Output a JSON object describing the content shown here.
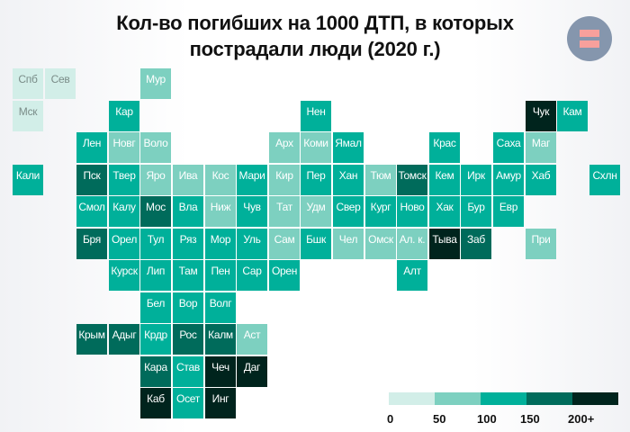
{
  "title_line1": "Кол-во погибших на 1000 ДТП, в которых",
  "title_line2": "пострадали люди (2020 г.)",
  "logo": "equals-logo",
  "legend": {
    "colors": [
      "#d2eee8",
      "#7dd0c0",
      "#00b09a",
      "#006b5b",
      "#00241d"
    ],
    "labels": [
      "0",
      "50",
      "100",
      "150",
      "200+"
    ]
  },
  "chart_data": {
    "type": "heatmap",
    "title": "Кол-во погибших на 1000 ДТП, в которых пострадали люди (2020 г.)",
    "subtitle": "",
    "description": "Tile-grid map of Russian regions; color bin indicates deaths per 1000 road accidents with injured people",
    "bins": [
      {
        "bin": 0,
        "range": "0–50",
        "color": "#d2eee8"
      },
      {
        "bin": 1,
        "range": "50–100",
        "color": "#7dd0c0"
      },
      {
        "bin": 2,
        "range": "100–150",
        "color": "#00b09a"
      },
      {
        "bin": 3,
        "range": "150–200",
        "color": "#006b5b"
      },
      {
        "bin": 4,
        "range": "200+",
        "color": "#00241d"
      }
    ],
    "legend_ticks": [
      "0",
      "50",
      "100",
      "150",
      "200+"
    ],
    "regions": [
      {
        "name": "Спб",
        "row": 0,
        "col": 0,
        "bin": 0
      },
      {
        "name": "Сев",
        "row": 0,
        "col": 1,
        "bin": 0
      },
      {
        "name": "Мур",
        "row": 0,
        "col": 4,
        "bin": 1
      },
      {
        "name": "Мск",
        "row": 1,
        "col": 0,
        "bin": 0
      },
      {
        "name": "Кар",
        "row": 1,
        "col": 3,
        "bin": 2
      },
      {
        "name": "Нен",
        "row": 1,
        "col": 9,
        "bin": 2
      },
      {
        "name": "Чук",
        "row": 1,
        "col": 16,
        "bin": 4
      },
      {
        "name": "Кам",
        "row": 1,
        "col": 17,
        "bin": 2
      },
      {
        "name": "Лен",
        "row": 2,
        "col": 2,
        "bin": 2
      },
      {
        "name": "Новг",
        "row": 2,
        "col": 3,
        "bin": 1
      },
      {
        "name": "Воло",
        "row": 2,
        "col": 4,
        "bin": 1
      },
      {
        "name": "Арх",
        "row": 2,
        "col": 8,
        "bin": 1
      },
      {
        "name": "Коми",
        "row": 2,
        "col": 9,
        "bin": 1
      },
      {
        "name": "Ямал",
        "row": 2,
        "col": 10,
        "bin": 2
      },
      {
        "name": "Крас",
        "row": 2,
        "col": 13,
        "bin": 2
      },
      {
        "name": "Саха",
        "row": 2,
        "col": 15,
        "bin": 2
      },
      {
        "name": "Маг",
        "row": 2,
        "col": 16,
        "bin": 1
      },
      {
        "name": "Кали",
        "row": 3,
        "col": 0,
        "bin": 2
      },
      {
        "name": "Пск",
        "row": 3,
        "col": 2,
        "bin": 3
      },
      {
        "name": "Твер",
        "row": 3,
        "col": 3,
        "bin": 2
      },
      {
        "name": "Яро",
        "row": 3,
        "col": 4,
        "bin": 1
      },
      {
        "name": "Ива",
        "row": 3,
        "col": 5,
        "bin": 1
      },
      {
        "name": "Кос",
        "row": 3,
        "col": 6,
        "bin": 1
      },
      {
        "name": "Мари",
        "row": 3,
        "col": 7,
        "bin": 2
      },
      {
        "name": "Кир",
        "row": 3,
        "col": 8,
        "bin": 1
      },
      {
        "name": "Пер",
        "row": 3,
        "col": 9,
        "bin": 2
      },
      {
        "name": "Хан",
        "row": 3,
        "col": 10,
        "bin": 2
      },
      {
        "name": "Тюм",
        "row": 3,
        "col": 11,
        "bin": 1
      },
      {
        "name": "Томск",
        "row": 3,
        "col": 12,
        "bin": 3
      },
      {
        "name": "Кем",
        "row": 3,
        "col": 13,
        "bin": 2
      },
      {
        "name": "Ирк",
        "row": 3,
        "col": 14,
        "bin": 2
      },
      {
        "name": "Амур",
        "row": 3,
        "col": 15,
        "bin": 2
      },
      {
        "name": "Хаб",
        "row": 3,
        "col": 16,
        "bin": 2
      },
      {
        "name": "Схлн",
        "row": 3,
        "col": 18,
        "bin": 2
      },
      {
        "name": "Смол",
        "row": 4,
        "col": 2,
        "bin": 2
      },
      {
        "name": "Калу",
        "row": 4,
        "col": 3,
        "bin": 2
      },
      {
        "name": "Мос",
        "row": 4,
        "col": 4,
        "bin": 3
      },
      {
        "name": "Вла",
        "row": 4,
        "col": 5,
        "bin": 2
      },
      {
        "name": "Ниж",
        "row": 4,
        "col": 6,
        "bin": 1
      },
      {
        "name": "Чув",
        "row": 4,
        "col": 7,
        "bin": 2
      },
      {
        "name": "Тат",
        "row": 4,
        "col": 8,
        "bin": 1
      },
      {
        "name": "Удм",
        "row": 4,
        "col": 9,
        "bin": 1
      },
      {
        "name": "Свер",
        "row": 4,
        "col": 10,
        "bin": 2
      },
      {
        "name": "Кург",
        "row": 4,
        "col": 11,
        "bin": 2
      },
      {
        "name": "Ново",
        "row": 4,
        "col": 12,
        "bin": 2
      },
      {
        "name": "Хак",
        "row": 4,
        "col": 13,
        "bin": 2
      },
      {
        "name": "Бур",
        "row": 4,
        "col": 14,
        "bin": 2
      },
      {
        "name": "Евр",
        "row": 4,
        "col": 15,
        "bin": 2
      },
      {
        "name": "Бря",
        "row": 5,
        "col": 2,
        "bin": 3
      },
      {
        "name": "Орел",
        "row": 5,
        "col": 3,
        "bin": 2
      },
      {
        "name": "Тул",
        "row": 5,
        "col": 4,
        "bin": 2
      },
      {
        "name": "Ряз",
        "row": 5,
        "col": 5,
        "bin": 2
      },
      {
        "name": "Мор",
        "row": 5,
        "col": 6,
        "bin": 2
      },
      {
        "name": "Уль",
        "row": 5,
        "col": 7,
        "bin": 2
      },
      {
        "name": "Сам",
        "row": 5,
        "col": 8,
        "bin": 1
      },
      {
        "name": "Бшк",
        "row": 5,
        "col": 9,
        "bin": 2
      },
      {
        "name": "Чел",
        "row": 5,
        "col": 10,
        "bin": 1
      },
      {
        "name": "Омск",
        "row": 5,
        "col": 11,
        "bin": 1
      },
      {
        "name": "Ал. к.",
        "row": 5,
        "col": 12,
        "bin": 1
      },
      {
        "name": "Тыва",
        "row": 5,
        "col": 13,
        "bin": 4
      },
      {
        "name": "Заб",
        "row": 5,
        "col": 14,
        "bin": 3
      },
      {
        "name": "При",
        "row": 5,
        "col": 16,
        "bin": 1
      },
      {
        "name": "Курск",
        "row": 6,
        "col": 3,
        "bin": 2
      },
      {
        "name": "Лип",
        "row": 6,
        "col": 4,
        "bin": 2
      },
      {
        "name": "Там",
        "row": 6,
        "col": 5,
        "bin": 2
      },
      {
        "name": "Пен",
        "row": 6,
        "col": 6,
        "bin": 2
      },
      {
        "name": "Сар",
        "row": 6,
        "col": 7,
        "bin": 2
      },
      {
        "name": "Орен",
        "row": 6,
        "col": 8,
        "bin": 2
      },
      {
        "name": "Алт",
        "row": 6,
        "col": 12,
        "bin": 2
      },
      {
        "name": "Бел",
        "row": 7,
        "col": 4,
        "bin": 2
      },
      {
        "name": "Вор",
        "row": 7,
        "col": 5,
        "bin": 2
      },
      {
        "name": "Волг",
        "row": 7,
        "col": 6,
        "bin": 2
      },
      {
        "name": "Крым",
        "row": 8,
        "col": 2,
        "bin": 3
      },
      {
        "name": "Адыг",
        "row": 8,
        "col": 3,
        "bin": 3
      },
      {
        "name": "Крдр",
        "row": 8,
        "col": 4,
        "bin": 2
      },
      {
        "name": "Рос",
        "row": 8,
        "col": 5,
        "bin": 3
      },
      {
        "name": "Калм",
        "row": 8,
        "col": 6,
        "bin": 3
      },
      {
        "name": "Аст",
        "row": 8,
        "col": 7,
        "bin": 1
      },
      {
        "name": "Кара",
        "row": 9,
        "col": 4,
        "bin": 3
      },
      {
        "name": "Став",
        "row": 9,
        "col": 5,
        "bin": 2
      },
      {
        "name": "Чеч",
        "row": 9,
        "col": 6,
        "bin": 4
      },
      {
        "name": "Даг",
        "row": 9,
        "col": 7,
        "bin": 4
      },
      {
        "name": "Каб",
        "row": 10,
        "col": 4,
        "bin": 4
      },
      {
        "name": "Осет",
        "row": 10,
        "col": 5,
        "bin": 2
      },
      {
        "name": "Инг",
        "row": 10,
        "col": 6,
        "bin": 4
      }
    ]
  }
}
